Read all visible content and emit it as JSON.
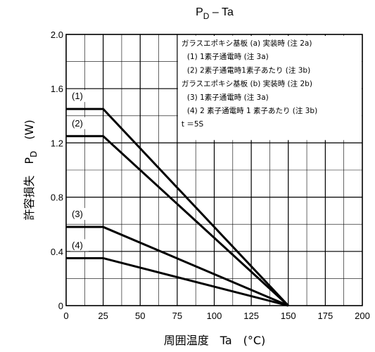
{
  "chart_data": {
    "type": "line",
    "title": "PD – Ta",
    "title_main": "P",
    "title_sub": "D",
    "title_rest": " – Ta",
    "xlabel": "周囲温度　Ta　(°C)",
    "ylabel_jp": "許容損失",
    "ylabel_sym": "P",
    "ylabel_sub": "D",
    "ylabel_unit": "(W)",
    "xlim": [
      0,
      200
    ],
    "ylim": [
      0,
      2.0
    ],
    "xticks": [
      0,
      25,
      50,
      75,
      100,
      125,
      150,
      175,
      200
    ],
    "yticks": [
      0,
      0.4,
      0.8,
      1.2,
      1.6,
      2.0
    ],
    "ytick_labels": [
      "0",
      "0.4",
      "0.8",
      "1.2",
      "1.6",
      "2.0"
    ],
    "grid": true,
    "series": [
      {
        "name": "(1)",
        "x": [
          0,
          25,
          150
        ],
        "y": [
          1.45,
          1.45,
          0
        ]
      },
      {
        "name": "(2)",
        "x": [
          0,
          25,
          150
        ],
        "y": [
          1.25,
          1.25,
          0
        ]
      },
      {
        "name": "(3)",
        "x": [
          0,
          25,
          150
        ],
        "y": [
          0.58,
          0.58,
          0
        ]
      },
      {
        "name": "(4)",
        "x": [
          0,
          25,
          150
        ],
        "y": [
          0.35,
          0.35,
          0
        ]
      }
    ],
    "legend": {
      "placement": "top-right",
      "lines": [
        "ガラスエポキシ基板 (a) 実装時 (注 2a)",
        "(1) 1素子通電時 (注 3a)",
        "(2) 2素子通電時1素子あたり (注 3b)",
        "ガラスエポキシ基板 (b) 実装時 (注 2b)",
        "(3) 1素子通電時 (注 3a)",
        "(4) 2 素子通電時 1 素子あたり (注 3b)",
        "t ＝5S"
      ]
    }
  }
}
